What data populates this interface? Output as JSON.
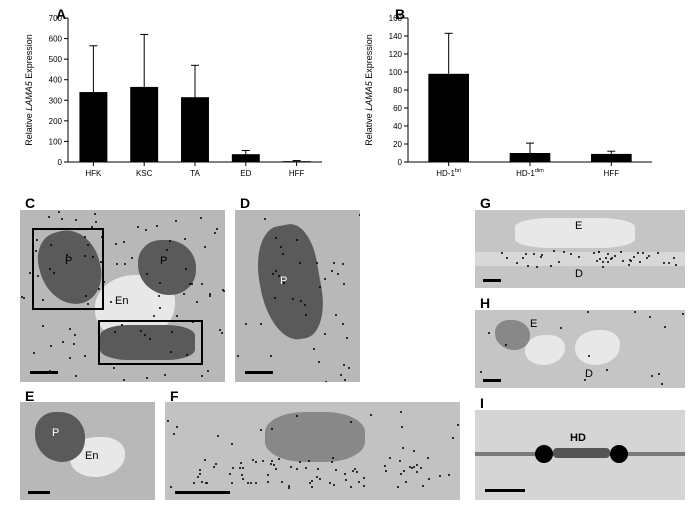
{
  "chartA": {
    "type": "bar",
    "ylabel": "Relative LAMA5 Expression",
    "label_fontsize": 9,
    "ylim": [
      0,
      700
    ],
    "ytick_step": 100,
    "categories": [
      "HFK",
      "KSC",
      "TA",
      "ED",
      "HFF"
    ],
    "values": [
      340,
      365,
      315,
      38,
      4
    ],
    "errors": [
      225,
      255,
      155,
      18,
      3
    ],
    "bar_color": "#000000",
    "background_color": "#ffffff",
    "axis_color": "#000000",
    "bar_width": 0.55,
    "tick_fontsize": 8
  },
  "chartB": {
    "type": "bar",
    "ylabel": "Relative LAMA5 Expression",
    "label_fontsize": 9,
    "ylim": [
      0,
      160
    ],
    "ytick_step": 20,
    "categories": [
      "HD-1bri",
      "HD-1dim",
      "HFF"
    ],
    "superscripts": [
      "bri",
      "dim",
      ""
    ],
    "category_bases": [
      "HD-1",
      "HD-1",
      "HFF"
    ],
    "values": [
      98,
      10,
      9
    ],
    "errors": [
      45,
      11,
      3
    ],
    "bar_color": "#000000",
    "background_color": "#ffffff",
    "axis_color": "#000000",
    "bar_width": 0.5,
    "tick_fontsize": 8
  },
  "panels": {
    "A": "A",
    "B": "B",
    "C": "C",
    "D": "D",
    "E": "E",
    "F": "F",
    "G": "G",
    "H": "H",
    "I": "I"
  },
  "micrograph_labels": {
    "P": "P",
    "En": "En",
    "E": "E",
    "D": "D",
    "HD": "HD"
  },
  "micrograph_bg": "#b0b0b0",
  "micrograph_dark": "#6a6a6a",
  "micrograph_light": "#e8e8e8"
}
